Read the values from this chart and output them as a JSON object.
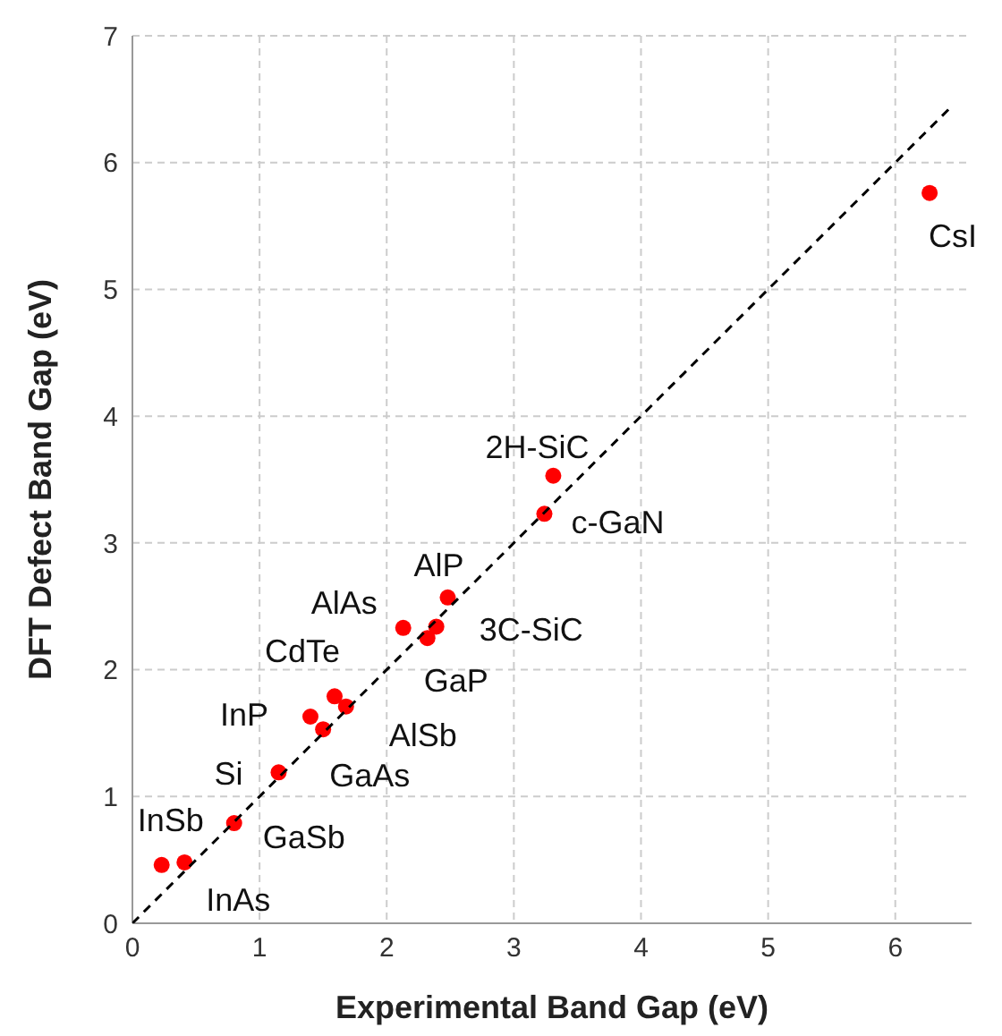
{
  "chart_data": {
    "type": "scatter",
    "xlabel": "Experimental Band Gap (eV)",
    "ylabel": "DFT Defect Band Gap (eV)",
    "xlim": [
      0,
      6.6
    ],
    "ylim": [
      0,
      7
    ],
    "xticks": [
      0,
      1,
      2,
      3,
      4,
      5,
      6
    ],
    "yticks": [
      0,
      1,
      2,
      3,
      4,
      5,
      6,
      7
    ],
    "grid": true,
    "legend": false,
    "marker": "circle",
    "series": [
      {
        "color": "#ff0000",
        "x": [
          0.23,
          0.41,
          0.8,
          1.15,
          1.4,
          1.5,
          1.59,
          1.68,
          2.13,
          2.39,
          2.32,
          2.48,
          3.24,
          3.31,
          6.27
        ],
        "values": [
          0.46,
          0.48,
          0.79,
          1.19,
          1.63,
          1.53,
          1.79,
          1.71,
          2.33,
          2.34,
          2.25,
          2.57,
          3.23,
          3.53,
          5.76
        ]
      },
      {
        "type": "line",
        "color": "#000000",
        "line_style": "dashed",
        "marker": "none",
        "x": [
          0,
          6.45
        ],
        "values": [
          0,
          6.45
        ]
      }
    ],
    "annotations": [
      {
        "text": "InSb",
        "x": 0.23,
        "y": 0.46
      },
      {
        "text": "InAs",
        "x": 0.41,
        "y": 0.48
      },
      {
        "text": "GaSb",
        "x": 0.8,
        "y": 0.79
      },
      {
        "text": "Si",
        "x": 1.15,
        "y": 1.19
      },
      {
        "text": "InP",
        "x": 1.4,
        "y": 1.63
      },
      {
        "text": "GaAs",
        "x": 1.5,
        "y": 1.53
      },
      {
        "text": "CdTe",
        "x": 1.59,
        "y": 1.79
      },
      {
        "text": "AlSb",
        "x": 1.68,
        "y": 1.71
      },
      {
        "text": "AlAs",
        "x": 2.13,
        "y": 2.33
      },
      {
        "text": "3C-SiC",
        "x": 2.39,
        "y": 2.34
      },
      {
        "text": "GaP",
        "x": 2.32,
        "y": 2.25
      },
      {
        "text": "AlP",
        "x": 2.48,
        "y": 2.57
      },
      {
        "text": "c-GaN",
        "x": 3.24,
        "y": 3.23
      },
      {
        "text": "2H-SiC",
        "x": 3.31,
        "y": 3.53
      },
      {
        "text": "CsI",
        "x": 6.27,
        "y": 5.76
      }
    ]
  }
}
